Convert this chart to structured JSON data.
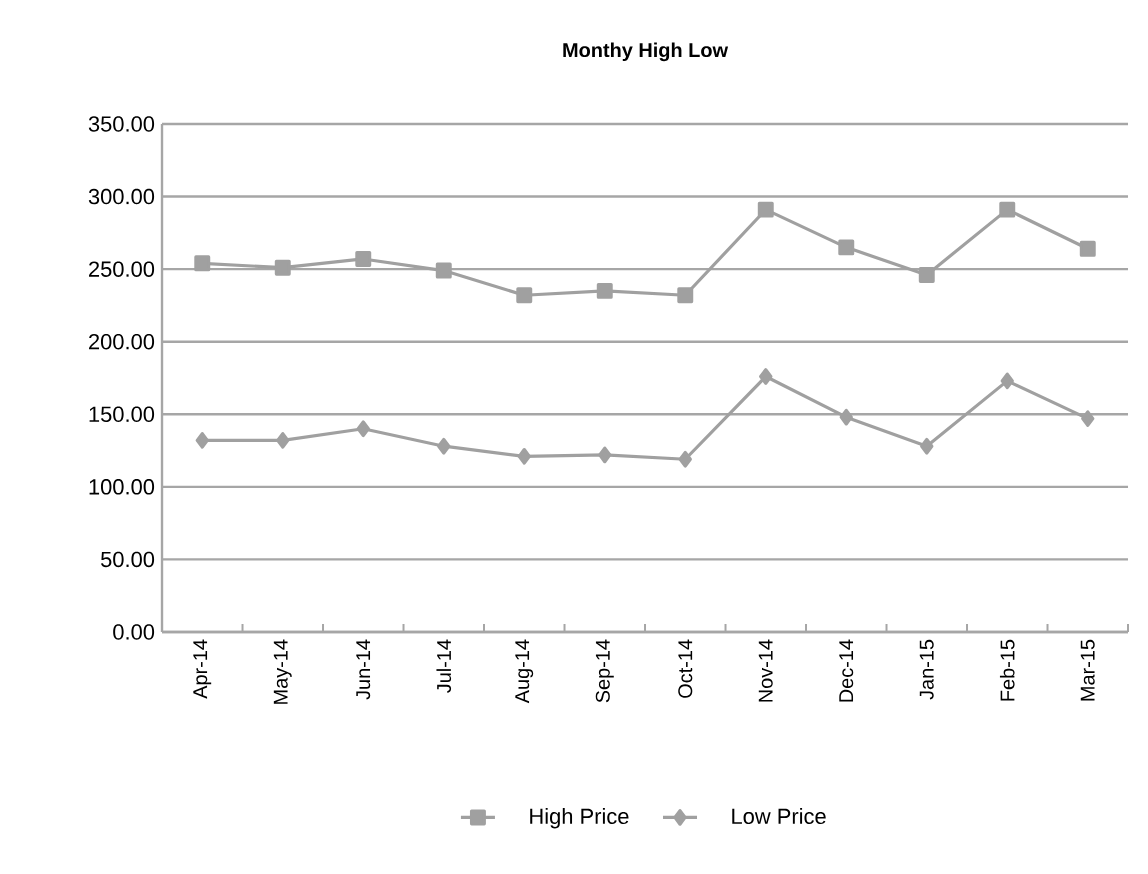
{
  "chart_data": {
    "type": "line",
    "title": "Monthy High Low",
    "categories": [
      "Apr-14",
      "May-14",
      "Jun-14",
      "Jul-14",
      "Aug-14",
      "Sep-14",
      "Oct-14",
      "Nov-14",
      "Dec-14",
      "Jan-15",
      "Feb-15",
      "Mar-15"
    ],
    "series": [
      {
        "name": "High Price",
        "color": "#a0a0a0",
        "marker": "square",
        "values": [
          254,
          251,
          257,
          249,
          232,
          235,
          232,
          291,
          265,
          246,
          291,
          264
        ]
      },
      {
        "name": "Low Price",
        "color": "#a0a0a0",
        "marker": "diamond",
        "values": [
          132,
          132,
          140,
          128,
          121,
          122,
          119,
          176,
          148,
          128,
          173,
          147
        ]
      }
    ],
    "ylim": [
      0,
      350
    ],
    "yticks": [
      {
        "value": 0,
        "label": "0.00"
      },
      {
        "value": 50,
        "label": "50.00"
      },
      {
        "value": 100,
        "label": "100.00"
      },
      {
        "value": 150,
        "label": "150.00"
      },
      {
        "value": 200,
        "label": "200.00"
      },
      {
        "value": 250,
        "label": "250.00"
      },
      {
        "value": 300,
        "label": "300.00"
      },
      {
        "value": 350,
        "label": "350.00"
      }
    ],
    "grid": "y",
    "legend": "bottom",
    "line_style": "solid"
  }
}
